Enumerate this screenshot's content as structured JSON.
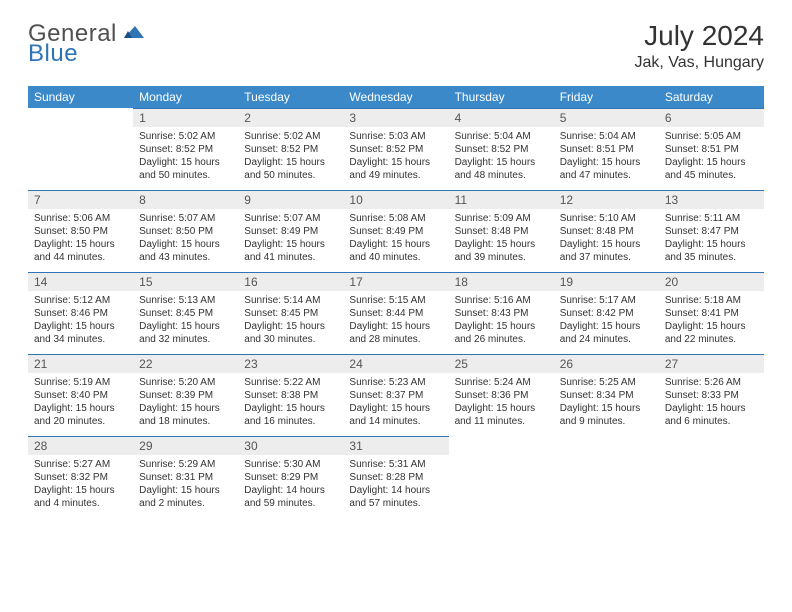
{
  "logo": {
    "general": "General",
    "blue": "Blue"
  },
  "title": "July 2024",
  "location": "Jak, Vas, Hungary",
  "colors": {
    "header_bg": "#3b89c9",
    "daynum_bg": "#ededed",
    "border": "#2f74b5"
  },
  "weekdays": [
    "Sunday",
    "Monday",
    "Tuesday",
    "Wednesday",
    "Thursday",
    "Friday",
    "Saturday"
  ],
  "weeks": [
    [
      null,
      {
        "n": "1",
        "sr": "Sunrise: 5:02 AM",
        "ss": "Sunset: 8:52 PM",
        "d1": "Daylight: 15 hours",
        "d2": "and 50 minutes."
      },
      {
        "n": "2",
        "sr": "Sunrise: 5:02 AM",
        "ss": "Sunset: 8:52 PM",
        "d1": "Daylight: 15 hours",
        "d2": "and 50 minutes."
      },
      {
        "n": "3",
        "sr": "Sunrise: 5:03 AM",
        "ss": "Sunset: 8:52 PM",
        "d1": "Daylight: 15 hours",
        "d2": "and 49 minutes."
      },
      {
        "n": "4",
        "sr": "Sunrise: 5:04 AM",
        "ss": "Sunset: 8:52 PM",
        "d1": "Daylight: 15 hours",
        "d2": "and 48 minutes."
      },
      {
        "n": "5",
        "sr": "Sunrise: 5:04 AM",
        "ss": "Sunset: 8:51 PM",
        "d1": "Daylight: 15 hours",
        "d2": "and 47 minutes."
      },
      {
        "n": "6",
        "sr": "Sunrise: 5:05 AM",
        "ss": "Sunset: 8:51 PM",
        "d1": "Daylight: 15 hours",
        "d2": "and 45 minutes."
      }
    ],
    [
      {
        "n": "7",
        "sr": "Sunrise: 5:06 AM",
        "ss": "Sunset: 8:50 PM",
        "d1": "Daylight: 15 hours",
        "d2": "and 44 minutes."
      },
      {
        "n": "8",
        "sr": "Sunrise: 5:07 AM",
        "ss": "Sunset: 8:50 PM",
        "d1": "Daylight: 15 hours",
        "d2": "and 43 minutes."
      },
      {
        "n": "9",
        "sr": "Sunrise: 5:07 AM",
        "ss": "Sunset: 8:49 PM",
        "d1": "Daylight: 15 hours",
        "d2": "and 41 minutes."
      },
      {
        "n": "10",
        "sr": "Sunrise: 5:08 AM",
        "ss": "Sunset: 8:49 PM",
        "d1": "Daylight: 15 hours",
        "d2": "and 40 minutes."
      },
      {
        "n": "11",
        "sr": "Sunrise: 5:09 AM",
        "ss": "Sunset: 8:48 PM",
        "d1": "Daylight: 15 hours",
        "d2": "and 39 minutes."
      },
      {
        "n": "12",
        "sr": "Sunrise: 5:10 AM",
        "ss": "Sunset: 8:48 PM",
        "d1": "Daylight: 15 hours",
        "d2": "and 37 minutes."
      },
      {
        "n": "13",
        "sr": "Sunrise: 5:11 AM",
        "ss": "Sunset: 8:47 PM",
        "d1": "Daylight: 15 hours",
        "d2": "and 35 minutes."
      }
    ],
    [
      {
        "n": "14",
        "sr": "Sunrise: 5:12 AM",
        "ss": "Sunset: 8:46 PM",
        "d1": "Daylight: 15 hours",
        "d2": "and 34 minutes."
      },
      {
        "n": "15",
        "sr": "Sunrise: 5:13 AM",
        "ss": "Sunset: 8:45 PM",
        "d1": "Daylight: 15 hours",
        "d2": "and 32 minutes."
      },
      {
        "n": "16",
        "sr": "Sunrise: 5:14 AM",
        "ss": "Sunset: 8:45 PM",
        "d1": "Daylight: 15 hours",
        "d2": "and 30 minutes."
      },
      {
        "n": "17",
        "sr": "Sunrise: 5:15 AM",
        "ss": "Sunset: 8:44 PM",
        "d1": "Daylight: 15 hours",
        "d2": "and 28 minutes."
      },
      {
        "n": "18",
        "sr": "Sunrise: 5:16 AM",
        "ss": "Sunset: 8:43 PM",
        "d1": "Daylight: 15 hours",
        "d2": "and 26 minutes."
      },
      {
        "n": "19",
        "sr": "Sunrise: 5:17 AM",
        "ss": "Sunset: 8:42 PM",
        "d1": "Daylight: 15 hours",
        "d2": "and 24 minutes."
      },
      {
        "n": "20",
        "sr": "Sunrise: 5:18 AM",
        "ss": "Sunset: 8:41 PM",
        "d1": "Daylight: 15 hours",
        "d2": "and 22 minutes."
      }
    ],
    [
      {
        "n": "21",
        "sr": "Sunrise: 5:19 AM",
        "ss": "Sunset: 8:40 PM",
        "d1": "Daylight: 15 hours",
        "d2": "and 20 minutes."
      },
      {
        "n": "22",
        "sr": "Sunrise: 5:20 AM",
        "ss": "Sunset: 8:39 PM",
        "d1": "Daylight: 15 hours",
        "d2": "and 18 minutes."
      },
      {
        "n": "23",
        "sr": "Sunrise: 5:22 AM",
        "ss": "Sunset: 8:38 PM",
        "d1": "Daylight: 15 hours",
        "d2": "and 16 minutes."
      },
      {
        "n": "24",
        "sr": "Sunrise: 5:23 AM",
        "ss": "Sunset: 8:37 PM",
        "d1": "Daylight: 15 hours",
        "d2": "and 14 minutes."
      },
      {
        "n": "25",
        "sr": "Sunrise: 5:24 AM",
        "ss": "Sunset: 8:36 PM",
        "d1": "Daylight: 15 hours",
        "d2": "and 11 minutes."
      },
      {
        "n": "26",
        "sr": "Sunrise: 5:25 AM",
        "ss": "Sunset: 8:34 PM",
        "d1": "Daylight: 15 hours",
        "d2": "and 9 minutes."
      },
      {
        "n": "27",
        "sr": "Sunrise: 5:26 AM",
        "ss": "Sunset: 8:33 PM",
        "d1": "Daylight: 15 hours",
        "d2": "and 6 minutes."
      }
    ],
    [
      {
        "n": "28",
        "sr": "Sunrise: 5:27 AM",
        "ss": "Sunset: 8:32 PM",
        "d1": "Daylight: 15 hours",
        "d2": "and 4 minutes."
      },
      {
        "n": "29",
        "sr": "Sunrise: 5:29 AM",
        "ss": "Sunset: 8:31 PM",
        "d1": "Daylight: 15 hours",
        "d2": "and 2 minutes."
      },
      {
        "n": "30",
        "sr": "Sunrise: 5:30 AM",
        "ss": "Sunset: 8:29 PM",
        "d1": "Daylight: 14 hours",
        "d2": "and 59 minutes."
      },
      {
        "n": "31",
        "sr": "Sunrise: 5:31 AM",
        "ss": "Sunset: 8:28 PM",
        "d1": "Daylight: 14 hours",
        "d2": "and 57 minutes."
      },
      null,
      null,
      null
    ]
  ]
}
